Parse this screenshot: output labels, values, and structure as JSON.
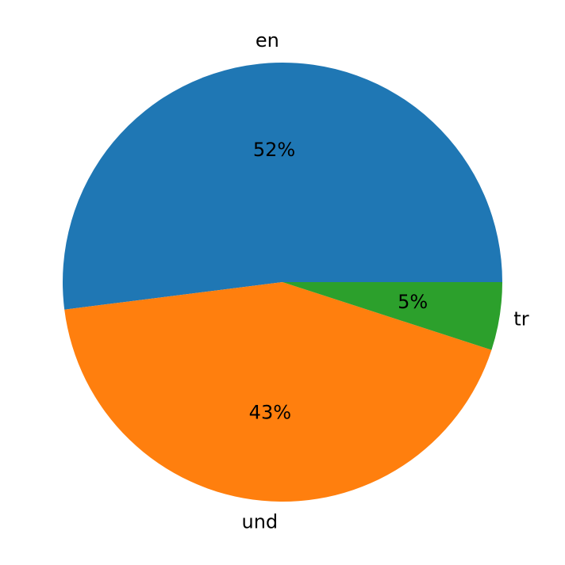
{
  "chart_data": {
    "type": "pie",
    "categories": [
      "en",
      "und",
      "tr"
    ],
    "values": [
      52,
      43,
      5
    ],
    "value_labels": [
      "52%",
      "43%",
      "5%"
    ],
    "colors": [
      "#1f77b4",
      "#ff7f0e",
      "#2ca02c"
    ]
  }
}
